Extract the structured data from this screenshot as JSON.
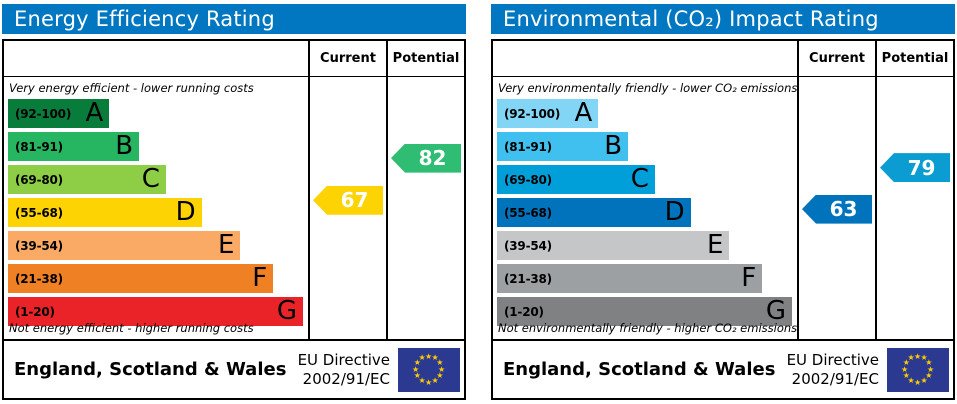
{
  "chart_data": [
    {
      "type": "bar",
      "title": "Energy Efficiency Rating",
      "title_bg": "#0077c0",
      "top_caption": "Very energy efficient - lower running costs",
      "bottom_caption": "Not energy efficient - higher running costs",
      "columns": {
        "current": "Current",
        "potential": "Potential"
      },
      "bands": [
        {
          "letter": "A",
          "range": "(92-100)",
          "lo": 92,
          "hi": 100,
          "width_pct": 34,
          "color": "#087c3a"
        },
        {
          "letter": "B",
          "range": "(81-91)",
          "lo": 81,
          "hi": 91,
          "width_pct": 44,
          "color": "#26b560"
        },
        {
          "letter": "C",
          "range": "(69-80)",
          "lo": 69,
          "hi": 80,
          "width_pct": 53,
          "color": "#8dce46"
        },
        {
          "letter": "D",
          "range": "(55-68)",
          "lo": 55,
          "hi": 68,
          "width_pct": 65,
          "color": "#fed304"
        },
        {
          "letter": "E",
          "range": "(39-54)",
          "lo": 39,
          "hi": 54,
          "width_pct": 78,
          "color": "#fbaa65"
        },
        {
          "letter": "F",
          "range": "(21-38)",
          "lo": 21,
          "hi": 38,
          "width_pct": 89,
          "color": "#ef8023"
        },
        {
          "letter": "G",
          "range": "(1-20)",
          "lo": 1,
          "hi": 20,
          "width_pct": 99,
          "color": "#ea2329"
        }
      ],
      "current": {
        "value": 67,
        "color": "#fed304"
      },
      "potential": {
        "value": 82,
        "color": "#2ebd72"
      },
      "footer": {
        "region": "England, Scotland & Wales",
        "directive_line1": "EU Directive",
        "directive_line2": "2002/91/EC",
        "flag_color": "#2b3990",
        "star_color": "#ffcc00"
      }
    },
    {
      "type": "bar",
      "title": "Environmental (CO₂) Impact Rating",
      "title_bg": "#0077c0",
      "top_caption": "Very environmentally friendly - lower CO₂ emissions",
      "bottom_caption": "Not environmentally friendly - higher CO₂ emissions",
      "columns": {
        "current": "Current",
        "potential": "Potential"
      },
      "bands": [
        {
          "letter": "A",
          "range": "(92-100)",
          "lo": 92,
          "hi": 100,
          "width_pct": 34,
          "color": "#82d5f4"
        },
        {
          "letter": "B",
          "range": "(81-91)",
          "lo": 81,
          "hi": 91,
          "width_pct": 44,
          "color": "#3fc0ee"
        },
        {
          "letter": "C",
          "range": "(69-80)",
          "lo": 69,
          "hi": 80,
          "width_pct": 53,
          "color": "#009fda"
        },
        {
          "letter": "D",
          "range": "(55-68)",
          "lo": 55,
          "hi": 68,
          "width_pct": 65,
          "color": "#0073bd"
        },
        {
          "letter": "E",
          "range": "(39-54)",
          "lo": 39,
          "hi": 54,
          "width_pct": 78,
          "color": "#c5c6c8"
        },
        {
          "letter": "F",
          "range": "(21-38)",
          "lo": 21,
          "hi": 38,
          "width_pct": 89,
          "color": "#9da0a3"
        },
        {
          "letter": "G",
          "range": "(1-20)",
          "lo": 1,
          "hi": 20,
          "width_pct": 99,
          "color": "#7f8183"
        }
      ],
      "current": {
        "value": 63,
        "color": "#0073bd"
      },
      "potential": {
        "value": 79,
        "color": "#0b9dd2"
      },
      "footer": {
        "region": "England, Scotland & Wales",
        "directive_line1": "EU Directive",
        "directive_line2": "2002/91/EC",
        "flag_color": "#2b3990",
        "star_color": "#ffcc00"
      }
    }
  ]
}
